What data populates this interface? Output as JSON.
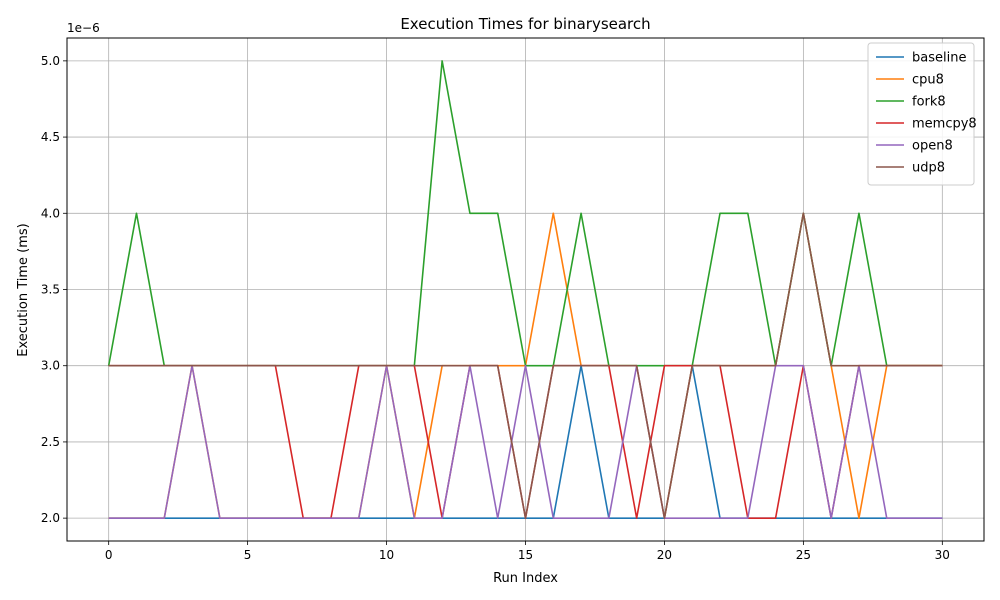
{
  "chart_data": {
    "type": "line",
    "title": "Execution Times for binarysearch",
    "xlabel": "Run Index",
    "ylabel": "Execution Time (ms)",
    "y_offset_text": "1e−6",
    "xlim": [
      -1.5,
      31.5
    ],
    "ylim": [
      1.85,
      5.15
    ],
    "xticks": [
      0,
      5,
      10,
      15,
      20,
      25,
      30
    ],
    "yticks": [
      2.0,
      2.5,
      3.0,
      3.5,
      4.0,
      4.5,
      5.0
    ],
    "ytick_labels": [
      "2.0",
      "2.5",
      "3.0",
      "3.5",
      "4.0",
      "4.5",
      "5.0"
    ],
    "grid": true,
    "legend_position": "top-right",
    "x": [
      0,
      1,
      2,
      3,
      4,
      5,
      6,
      7,
      8,
      9,
      10,
      11,
      12,
      13,
      14,
      15,
      16,
      17,
      18,
      19,
      20,
      21,
      22,
      23,
      24,
      25,
      26,
      27,
      28,
      29,
      30
    ],
    "series": [
      {
        "name": "baseline",
        "color": "#1f77b4",
        "values": [
          2,
          2,
          2,
          2,
          2,
          2,
          2,
          2,
          2,
          2,
          2,
          2,
          2,
          2,
          2,
          2,
          2,
          3,
          2,
          2,
          2,
          3,
          2,
          2,
          2,
          2,
          2,
          2,
          2,
          2,
          2
        ]
      },
      {
        "name": "cpu8",
        "color": "#ff7f0e",
        "values": [
          2,
          2,
          2,
          3,
          2,
          2,
          2,
          2,
          2,
          2,
          3,
          2,
          3,
          3,
          3,
          3,
          4,
          3,
          3,
          3,
          2,
          3,
          3,
          3,
          3,
          4,
          3,
          2,
          3,
          3,
          3
        ]
      },
      {
        "name": "fork8",
        "color": "#2ca02c",
        "values": [
          3,
          4,
          3,
          3,
          3,
          3,
          3,
          3,
          3,
          3,
          3,
          3,
          5,
          4,
          4,
          3,
          3,
          4,
          3,
          3,
          3,
          3,
          4,
          4,
          3,
          4,
          3,
          4,
          3,
          3,
          3
        ]
      },
      {
        "name": "memcpy8",
        "color": "#d62728",
        "values": [
          3,
          3,
          3,
          3,
          3,
          3,
          3,
          2,
          2,
          3,
          3,
          3,
          2,
          3,
          3,
          2,
          3,
          3,
          3,
          2,
          3,
          3,
          3,
          2,
          2,
          3,
          2,
          3,
          3,
          3,
          3
        ]
      },
      {
        "name": "open8",
        "color": "#9467bd",
        "values": [
          2,
          2,
          2,
          3,
          2,
          2,
          2,
          2,
          2,
          2,
          3,
          2,
          2,
          3,
          2,
          3,
          2,
          2,
          2,
          3,
          2,
          2,
          2,
          2,
          3,
          3,
          2,
          3,
          2,
          2,
          2
        ]
      },
      {
        "name": "udp8",
        "color": "#8c564b",
        "values": [
          3,
          3,
          3,
          3,
          3,
          3,
          3,
          3,
          3,
          3,
          3,
          3,
          3,
          3,
          3,
          2,
          3,
          3,
          3,
          3,
          2,
          3,
          3,
          3,
          3,
          4,
          3,
          3,
          3,
          3,
          3
        ]
      }
    ]
  }
}
